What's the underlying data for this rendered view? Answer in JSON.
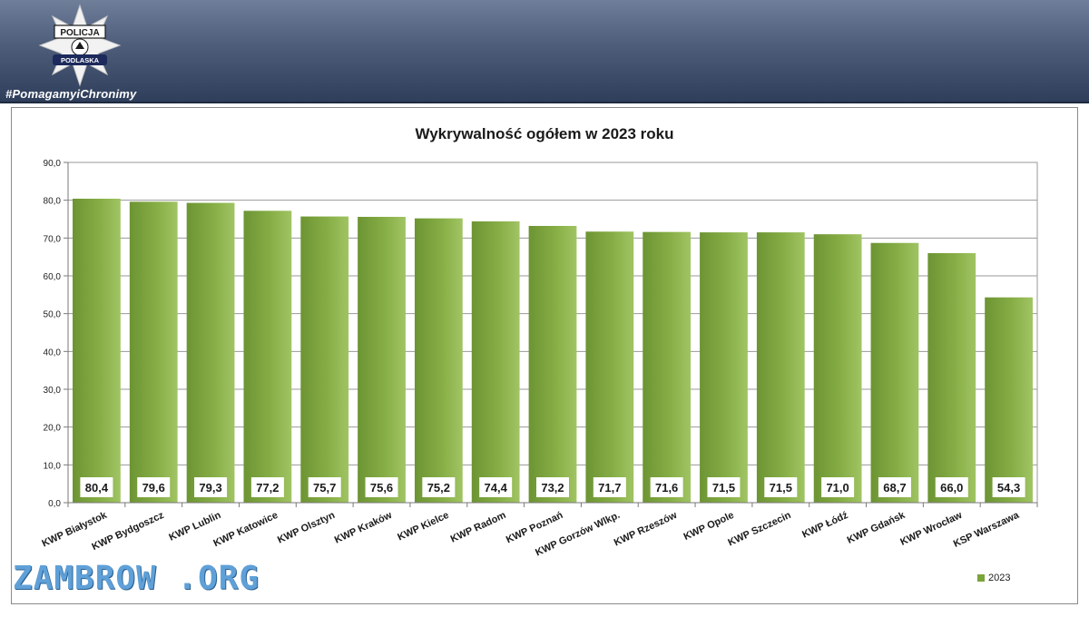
{
  "header": {
    "logo_top_text": "POLICJA",
    "logo_bottom_text": "PODLASKA",
    "hashtag": "#PomagamyiChronimy"
  },
  "watermark": "ZAMBROW .ORG",
  "colors": {
    "bar": "#7aa33c",
    "bar_light": "#9bc25a",
    "grid": "#9a9a9a",
    "banner": "#4d5d7a"
  },
  "chart_data": {
    "type": "bar",
    "title": "Wykrywalność ogółem w 2023 roku",
    "categories": [
      "KWP Białystok",
      "KWP Bydgoszcz",
      "KWP Lublin",
      "KWP Katowice",
      "KWP Olsztyn",
      "KWP Kraków",
      "KWP Kielce",
      "KWP Radom",
      "KWP Poznań",
      "KWP Gorzów Wlkp.",
      "KWP Rzeszów",
      "KWP Opole",
      "KWP Szczecin",
      "KWP Łódź",
      "KWP Gdańsk",
      "KWP Wrocław",
      "KSP Warszawa"
    ],
    "series": [
      {
        "name": "2023",
        "values": [
          80.4,
          79.6,
          79.3,
          77.2,
          75.7,
          75.6,
          75.2,
          74.4,
          73.2,
          71.7,
          71.6,
          71.5,
          71.5,
          71.0,
          68.7,
          66.0,
          54.3
        ]
      }
    ],
    "data_labels": [
      "80,4",
      "79,6",
      "79,3",
      "77,2",
      "75,7",
      "75,6",
      "75,2",
      "74,4",
      "73,2",
      "71,7",
      "71,6",
      "71,5",
      "71,5",
      "71,0",
      "68,7",
      "66,0",
      "54,3"
    ],
    "ylim": [
      0,
      90
    ],
    "yticks": [
      "0,0",
      "10,0",
      "20,0",
      "30,0",
      "40,0",
      "50,0",
      "60,0",
      "70,0",
      "80,0",
      "90,0"
    ],
    "grid": true,
    "legend": "bottom-right"
  }
}
